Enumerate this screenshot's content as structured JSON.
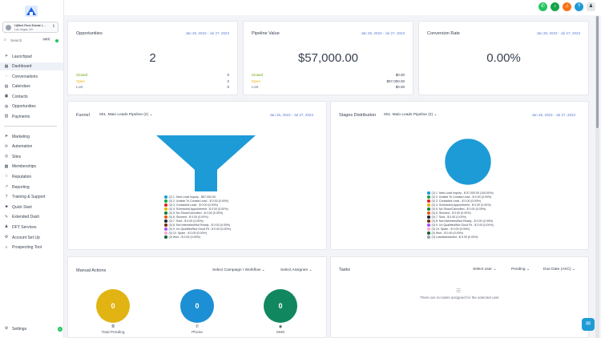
{
  "sidebar": {
    "location": {
      "name": "Hjified Real Estate L...",
      "city": "Las Vegas, NV"
    },
    "search": {
      "placeholder": "Search",
      "shortcut": "ctrl K"
    },
    "items": [
      {
        "label": "Launchpad",
        "icon": "rocket-icon",
        "glyph": "✈",
        "active": false
      },
      {
        "label": "Dashboard",
        "icon": "dashboard-icon",
        "glyph": "▦",
        "active": true
      },
      {
        "label": "Conversations",
        "icon": "chat-icon",
        "glyph": "◌",
        "active": false
      },
      {
        "label": "Calendars",
        "icon": "calendar-icon",
        "glyph": "▤",
        "active": false
      },
      {
        "label": "Contacts",
        "icon": "contacts-icon",
        "glyph": "▣",
        "active": false
      },
      {
        "label": "Opportunities",
        "icon": "funnel-icon",
        "glyph": "◍",
        "active": false
      },
      {
        "label": "Payments",
        "icon": "payments-icon",
        "glyph": "▥",
        "active": false
      }
    ],
    "items2": [
      {
        "label": "Marketing",
        "icon": "send-icon",
        "glyph": "➤"
      },
      {
        "label": "Automation",
        "icon": "automation-icon",
        "glyph": "⟳"
      },
      {
        "label": "Sites",
        "icon": "globe-icon",
        "glyph": "◎"
      },
      {
        "label": "Memberships",
        "icon": "membership-icon",
        "glyph": "▩"
      },
      {
        "label": "Reputation",
        "icon": "star-icon",
        "glyph": "☆"
      },
      {
        "label": "Reporting",
        "icon": "chart-icon",
        "glyph": "↗"
      },
      {
        "label": "Training & Support",
        "icon": "question-icon",
        "glyph": "?"
      },
      {
        "label": "Quick Start",
        "icon": "video-icon",
        "glyph": "■"
      },
      {
        "label": "Extended Dash",
        "icon": "wrench-icon",
        "glyph": "✎"
      },
      {
        "label": "DFY Services",
        "icon": "user-icon",
        "glyph": "♟"
      },
      {
        "label": "Account Set Up",
        "icon": "gear-icon",
        "glyph": "⚙"
      },
      {
        "label": "Prospecting Tool",
        "icon": "search-icon",
        "glyph": "⌕"
      }
    ],
    "settings": {
      "label": "Settings",
      "badge": "6"
    }
  },
  "topbar": {
    "colors": [
      "#22c55e",
      "#16a34a",
      "#f97316",
      "#1d9bd7"
    ]
  },
  "opportunities": {
    "title": "Opportunities",
    "date": "Jan 26, 2023 - Jul 27, 2023",
    "value": "2",
    "rows": [
      {
        "label": "Closed",
        "value": "0",
        "color": "#65a30d"
      },
      {
        "label": "Open",
        "value": "2",
        "color": "#eab308"
      },
      {
        "label": "Lost",
        "value": "0",
        "color": "#6b7280"
      }
    ]
  },
  "pipeline": {
    "title": "Pipeline Value",
    "date": "Jan 26, 2023 - Jul 27, 2023",
    "value": "$57,000.00",
    "rows": [
      {
        "label": "Closed",
        "value": "$0.00",
        "color": "#65a30d"
      },
      {
        "label": "Open",
        "value": "$57,000.00",
        "color": "#eab308"
      },
      {
        "label": "Lost",
        "value": "$0.00",
        "color": "#6b7280"
      }
    ]
  },
  "conversion": {
    "title": "Conversion Rate",
    "date": "Jan 26, 2023 - Jul 27, 2023",
    "value": "0.00%"
  },
  "funnel": {
    "title": "Funnel",
    "pipeline": "001. Main Leads Pipeline (2)",
    "date": "Jan 26, 2023 - Jul 27, 2023",
    "legend": [
      {
        "text": "(2) 1. New Lead Inquiry - $57,000.00",
        "color": "#1d9bd7"
      },
      {
        "text": "(0) 2. Unable To Contact Lead - $ 0.00 (0.00%)",
        "color": "#16a34a"
      },
      {
        "text": "(0) 3. Contacted Lead - $ 0.00 (0.00%)",
        "color": "#dc2626"
      },
      {
        "text": "(0) 4. Scheduled Appointment - $ 0.00 (0.00%)",
        "color": "#eab308"
      },
      {
        "text": "(0) 5. No Show/Cancelled - $ 0.00 (0.00%)",
        "color": "#15803d"
      },
      {
        "text": "(0) 6. Showed - $ 0.00 (0.00%)",
        "color": "#ea580c"
      },
      {
        "text": "(0) 7. Sold - $ 0.00 (0.00%)",
        "color": "#1f2937"
      },
      {
        "text": "(0) 8. Not Interested/Not Ready - $ 0.00 (0.00%)",
        "color": "#7c2d12"
      },
      {
        "text": "(0) 9. Un Qualified/Not Good Fit - $ 0.00 (0.00%)",
        "color": "#a855f7"
      },
      {
        "text": "(0) 10. Spam - $ 0.00 (0.00%)",
        "color": "#f9a8d4"
      },
      {
        "text": "(0) Won - $ 0.00 (0.00%)",
        "color": "#166534"
      }
    ]
  },
  "stages": {
    "title": "Stages Distribution",
    "pipeline": "001. Main Leads Pipeline (2)",
    "date": "Jan 26, 2023 - Jul 27, 2023",
    "legend": [
      {
        "text": "(2) 1. New Lead Inquiry - $ 57,000.00 (100.00%)",
        "color": "#1d9bd7"
      },
      {
        "text": "(0) 2. Unable To Contact Lead - $ 0.00 (0.00%)",
        "color": "#16a34a"
      },
      {
        "text": "(0) 3. Contacted Lead - $ 0.00 (0.00%)",
        "color": "#dc2626"
      },
      {
        "text": "(0) 4. Scheduled Appointment - $ 0.00 (0.00%)",
        "color": "#eab308"
      },
      {
        "text": "(0) 5. No Show/Cancelled - $ 0.00 (0.00%)",
        "color": "#15803d"
      },
      {
        "text": "(0) 6. Showed - $ 0.00 (0.00%)",
        "color": "#ea580c"
      },
      {
        "text": "(0) 7. Sold - $ 0.00 (0.00%)",
        "color": "#1f2937"
      },
      {
        "text": "(0) 8. Not Interested/Not Ready - $ 0.00 (0.00%)",
        "color": "#7c2d12"
      },
      {
        "text": "(0) 9. Un Qualified/Not Good Fit - $ 0.00 (0.00%)",
        "color": "#a855f7"
      },
      {
        "text": "(0) 10. Spam - $ 0.00 (0.00%)",
        "color": "#f9a8d4"
      },
      {
        "text": "(0) Won - $ 0.00 (0.00%)",
        "color": "#166534"
      },
      {
        "text": "(0) Lost/abandoned - $ 0.00 (0.00%)",
        "color": "#9ca3af"
      }
    ]
  },
  "manual": {
    "title": "Manual Actions",
    "campaign": "Select Campaign / Workflow",
    "assignee": "Select Assignee",
    "circles": [
      {
        "value": "0",
        "label": "Total Pending",
        "icon": "list-icon",
        "glyph": "≣",
        "color": "#e1b413"
      },
      {
        "value": "0",
        "label": "Phone",
        "icon": "phone-icon",
        "glyph": "✆",
        "color": "#1d8fd4"
      },
      {
        "value": "0",
        "label": "SMS",
        "icon": "sms-icon",
        "glyph": "◉",
        "color": "#11875f"
      }
    ]
  },
  "tasks": {
    "title": "Tasks",
    "user": "Select user",
    "status": "Pending",
    "sort": "Due Date (ASC)",
    "empty": "There are no tasks assigned for the selected user"
  },
  "chart_data": [
    {
      "type": "pie",
      "categories": [
        "1. New Lead Inquiry"
      ],
      "values": [
        100
      ]
    }
  ]
}
